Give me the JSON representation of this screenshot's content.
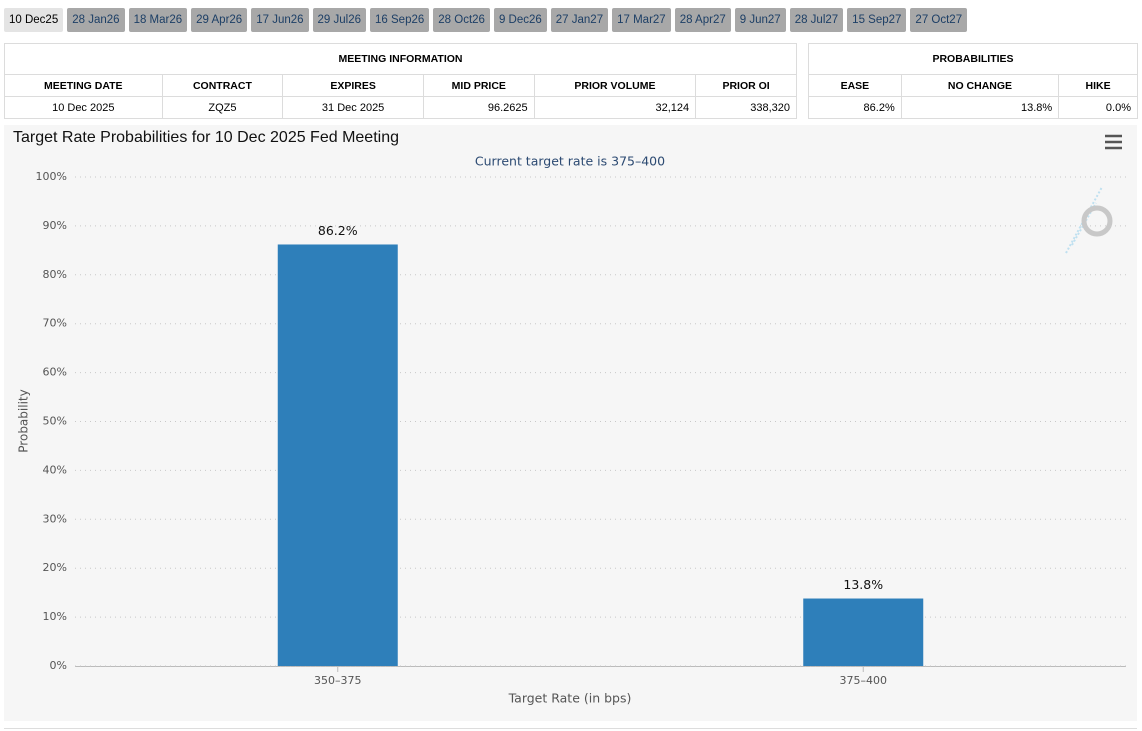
{
  "tabs": [
    "10 Dec25",
    "28 Jan26",
    "18 Mar26",
    "29 Apr26",
    "17 Jun26",
    "29 Jul26",
    "16 Sep26",
    "28 Oct26",
    "9 Dec26",
    "27 Jan27",
    "17 Mar27",
    "28 Apr27",
    "9 Jun27",
    "28 Jul27",
    "15 Sep27",
    "27 Oct27"
  ],
  "meeting_table": {
    "title": "MEETING INFORMATION",
    "headers": [
      "MEETING DATE",
      "CONTRACT",
      "EXPIRES",
      "MID PRICE",
      "PRIOR VOLUME",
      "PRIOR OI"
    ],
    "rows": [
      [
        "10 Dec 2025",
        "ZQZ5",
        "31 Dec 2025",
        "96.2625",
        "32,124",
        "338,320"
      ]
    ]
  },
  "prob_table": {
    "title": "PROBABILITIES",
    "headers": [
      "EASE",
      "NO CHANGE",
      "HIKE"
    ],
    "rows": [
      [
        "86.2%",
        "13.8%",
        "0.0%"
      ]
    ]
  },
  "chart_data": {
    "type": "bar",
    "title": "Target Rate Probabilities for 10 Dec 2025 Fed Meeting",
    "subtitle": "Current target rate is 375–400",
    "x_label": "Target Rate (in bps)",
    "y_label": "Probability",
    "categories": [
      "350–375",
      "375–400"
    ],
    "values": [
      86.2,
      13.8
    ],
    "value_labels": [
      "86.2%",
      "13.8%"
    ],
    "color": "#2e7fba",
    "ylim": [
      0,
      100
    ],
    "yticks": [
      {
        "value": 0,
        "label": "0%"
      },
      {
        "value": 10,
        "label": "10%"
      },
      {
        "value": 20,
        "label": "20%"
      },
      {
        "value": 30,
        "label": "30%"
      },
      {
        "value": 40,
        "label": "40%"
      },
      {
        "value": 50,
        "label": "50%"
      },
      {
        "value": 60,
        "label": "60%"
      },
      {
        "value": 70,
        "label": "70%"
      },
      {
        "value": 80,
        "label": "80%"
      },
      {
        "value": 90,
        "label": "90%"
      },
      {
        "value": 100,
        "label": "100%"
      }
    ],
    "grid": true
  }
}
